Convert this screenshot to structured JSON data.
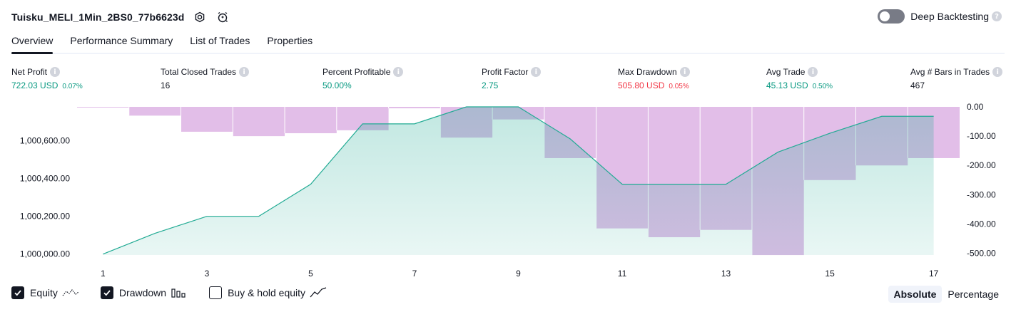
{
  "header": {
    "strategy_name": "Tuisku_MELI_1Min_2BS0_77b6623d",
    "deep_backtesting_label": "Deep Backtesting",
    "deep_backtesting_on": false
  },
  "tabs": [
    {
      "label": "Overview",
      "active": true
    },
    {
      "label": "Performance Summary",
      "active": false
    },
    {
      "label": "List of Trades",
      "active": false
    },
    {
      "label": "Properties",
      "active": false
    }
  ],
  "metrics": [
    {
      "label": "Net Profit",
      "value": "722.03 USD",
      "pct": "0.07%",
      "color": "#089981"
    },
    {
      "label": "Total Closed Trades",
      "value": "16",
      "pct": "",
      "color": "#131722"
    },
    {
      "label": "Percent Profitable",
      "value": "50.00%",
      "pct": "",
      "color": "#089981"
    },
    {
      "label": "Profit Factor",
      "value": "2.75",
      "pct": "",
      "color": "#089981"
    },
    {
      "label": "Max Drawdown",
      "value": "505.80 USD",
      "pct": "0.05%",
      "color": "#f23645"
    },
    {
      "label": "Avg Trade",
      "value": "45.13 USD",
      "pct": "0.50%",
      "color": "#089981"
    },
    {
      "label": "Avg # Bars in Trades",
      "value": "467",
      "pct": "",
      "color": "#131722"
    }
  ],
  "chart_data": {
    "type": "area",
    "x_ticks": [
      "1",
      "3",
      "5",
      "7",
      "9",
      "11",
      "13",
      "15",
      "17"
    ],
    "left_axis_ticks": [
      "1,000,600.00",
      "1,000,400.00",
      "1,000,200.00",
      "1,000,000.00"
    ],
    "left_axis_values": [
      1000600,
      1000400,
      1000200,
      1000000
    ],
    "right_axis_ticks": [
      "0.00",
      "-100.00",
      "-200.00",
      "-300.00",
      "-400.00",
      "-500.00"
    ],
    "right_axis_values": [
      0,
      -100,
      -200,
      -300,
      -400,
      -500
    ],
    "equity_ylim": [
      999995,
      1000780
    ],
    "drawdown_ylim": [
      -505.8,
      0
    ],
    "x": [
      1,
      2,
      3,
      4,
      5,
      6,
      7,
      8,
      9,
      10,
      11,
      12,
      13,
      14,
      15,
      16,
      17
    ],
    "series": [
      {
        "name": "Equity",
        "color": "#22ab94",
        "values": [
          1000000,
          1000110,
          1000200,
          1000200,
          1000370,
          1000690,
          1000690,
          1000780,
          1000780,
          1000610,
          1000370,
          1000370,
          1000370,
          1000540,
          1000640,
          1000730,
          1000730
        ]
      },
      {
        "name": "Drawdown",
        "color": "#ce93d8",
        "values": [
          0,
          -30,
          -85,
          -100,
          -90,
          -80,
          -5,
          -105,
          -43,
          -175,
          -415,
          -445,
          -420,
          -506,
          -250,
          -200,
          -175
        ]
      }
    ]
  },
  "legend": {
    "equity": {
      "label": "Equity",
      "checked": true
    },
    "drawdown": {
      "label": "Drawdown",
      "checked": true
    },
    "buy_hold": {
      "label": "Buy & hold equity",
      "checked": false
    }
  },
  "modes": [
    {
      "label": "Absolute",
      "active": true
    },
    {
      "label": "Percentage",
      "active": false
    }
  ]
}
